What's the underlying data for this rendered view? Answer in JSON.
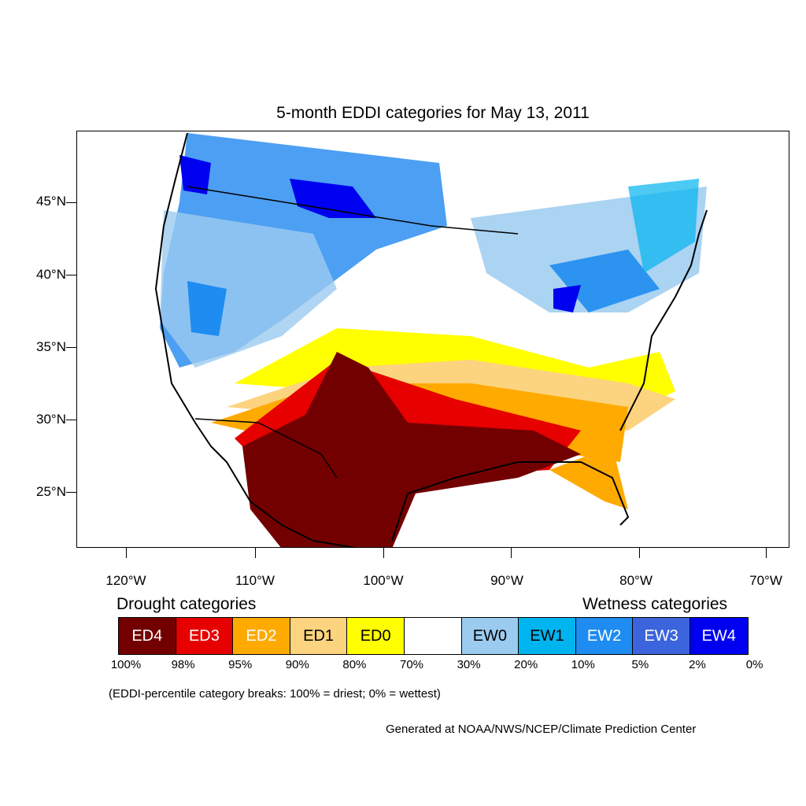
{
  "title": "5-month EDDI categories for May 13, 2011",
  "map": {
    "lat_labels": [
      "45°N",
      "40°N",
      "35°N",
      "30°N",
      "25°N"
    ],
    "lon_labels": [
      "120°W",
      "110°W",
      "100°W",
      "90°W",
      "80°W",
      "70°W"
    ]
  },
  "legend": {
    "drought_heading": "Drought categories",
    "wetness_heading": "Wetness categories",
    "categories": [
      {
        "label": "ED4",
        "color": "#730000",
        "text_color": "#ffffff"
      },
      {
        "label": "ED3",
        "color": "#e60000",
        "text_color": "#ffffff"
      },
      {
        "label": "ED2",
        "color": "#ffaa00",
        "text_color": "#ffffff"
      },
      {
        "label": "ED1",
        "color": "#fcd37f",
        "text_color": "#000000"
      },
      {
        "label": "ED0",
        "color": "#ffff00",
        "text_color": "#000000"
      },
      {
        "label": "",
        "color": "#ffffff",
        "text_color": "#000000"
      },
      {
        "label": "EW0",
        "color": "#9ccbf0",
        "text_color": "#000000"
      },
      {
        "label": "EW1",
        "color": "#00b4f0",
        "text_color": "#000000"
      },
      {
        "label": "EW2",
        "color": "#1e8cf0",
        "text_color": "#ffffff"
      },
      {
        "label": "EW3",
        "color": "#3c64dc",
        "text_color": "#ffffff"
      },
      {
        "label": "EW4",
        "color": "#0000f0",
        "text_color": "#ffffff"
      }
    ],
    "breaks": [
      "100%",
      "98%",
      "95%",
      "90%",
      "80%",
      "70%",
      "30%",
      "20%",
      "10%",
      "5%",
      "2%",
      "0%"
    ],
    "note": "(EDDI-percentile category breaks: 100% = driest; 0% = wettest)"
  },
  "credit": "Generated at NOAA/NWS/NCEP/Climate Prediction Center"
}
